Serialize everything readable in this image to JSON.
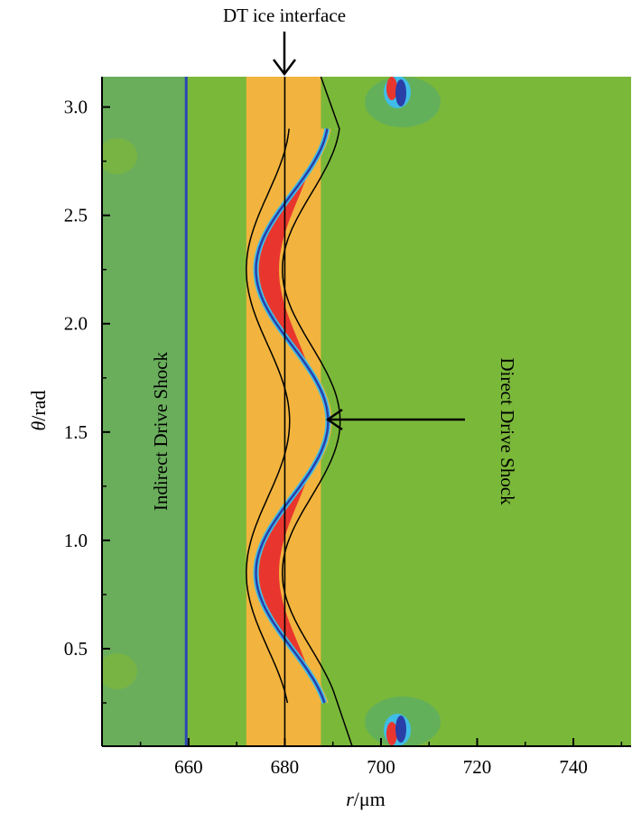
{
  "chart_data": {
    "type": "heatmap",
    "xlabel_var": "r",
    "xlabel_unit": "/μm",
    "ylabel_var": "θ",
    "ylabel_unit": "/rad",
    "xlim": [
      642,
      752
    ],
    "ylim": [
      0.05,
      3.14
    ],
    "xticks": [
      660,
      680,
      700,
      720,
      740
    ],
    "yticks": [
      0.5,
      1.0,
      1.5,
      2.0,
      2.5,
      3.0
    ],
    "xtick_labels": [
      "660",
      "680",
      "700",
      "720",
      "740"
    ],
    "ytick_labels": [
      "0.5",
      "1.0",
      "1.5",
      "2.0",
      "2.5",
      "3.0"
    ],
    "colors": {
      "background": "#7ab83a",
      "inner_region": "#6aae5c",
      "ice_layer": "#f2b43e",
      "peak": "#e8362e",
      "trough": "#2a3ea8",
      "cyan": "#40bde6",
      "contour": "#000000",
      "indirect_shock_line": "#2a45b5"
    },
    "regions": {
      "inner_region_r": [
        642,
        659.5
      ],
      "ice_layer_r": [
        672,
        687.5
      ]
    },
    "indirect_drive_shock_r": 659.5,
    "dt_ice_interface_r": 680,
    "direct_drive_shock": {
      "center_r": 681.5,
      "amplitude_r": 7.5,
      "theta_period": 1.4,
      "theta_phase": 1.55
    },
    "inner_contour": {
      "center_r": 676.5,
      "amplitude_r": 4.5
    },
    "outer_contour": {
      "center_r": 685.5,
      "amplitude_r": 6,
      "end_r": 694
    },
    "annotations": [
      {
        "text": "DT ice interface",
        "points_to": [
          680,
          3.14
        ]
      },
      {
        "text": "Indirect Drive Shock",
        "at": [
          650,
          1.6
        ]
      },
      {
        "text": "Direct Drive Shock",
        "at": [
          713,
          1.6
        ],
        "points_to": [
          689,
          1.55
        ]
      }
    ]
  }
}
